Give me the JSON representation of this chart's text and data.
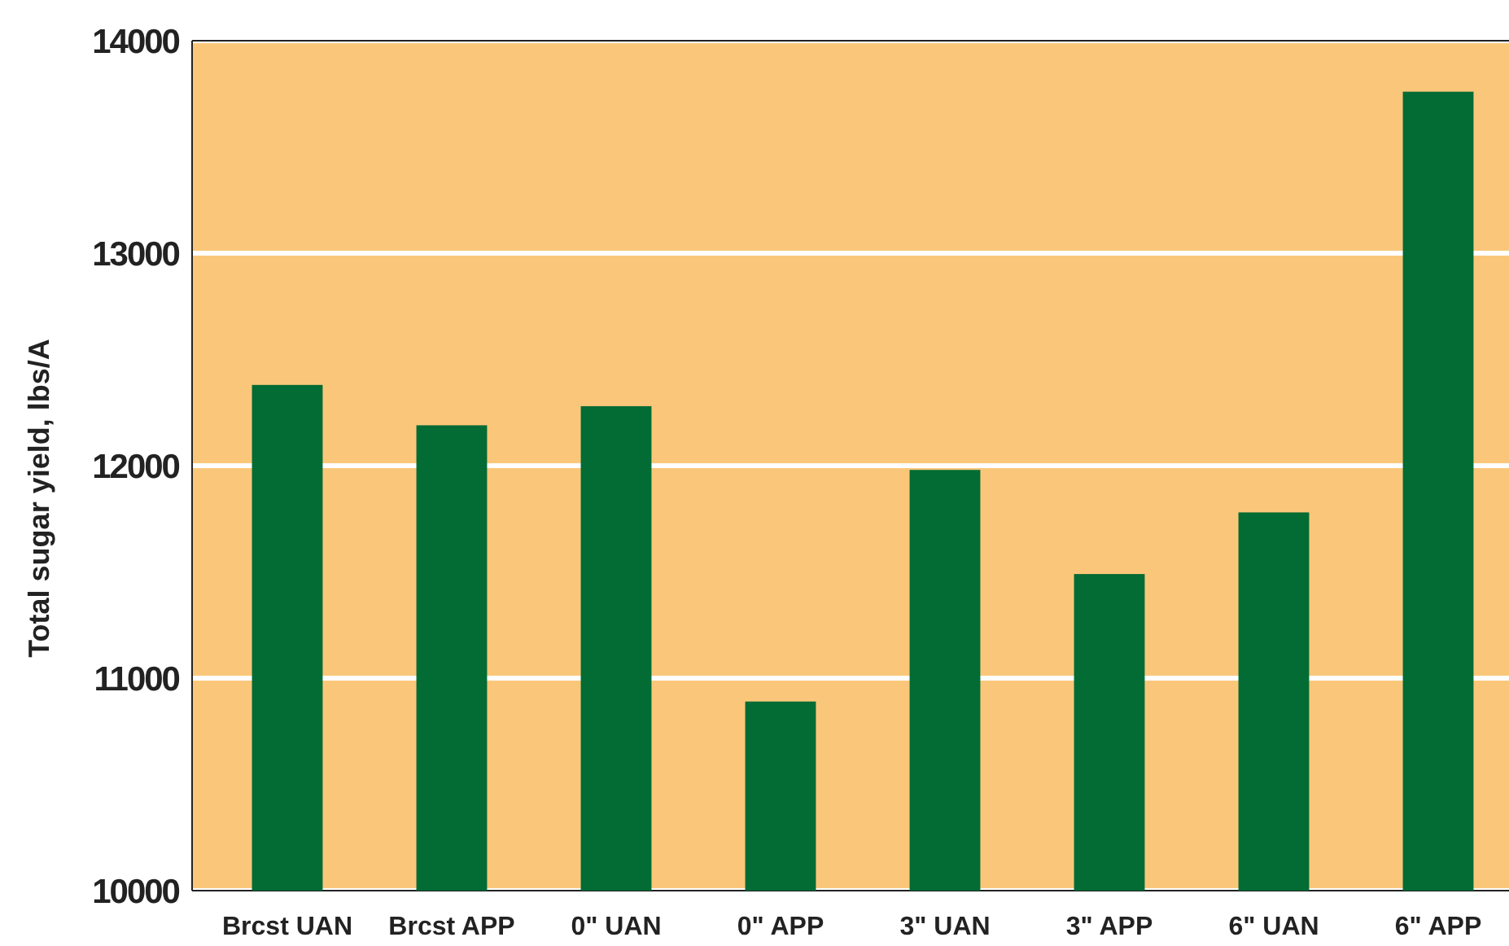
{
  "chart_data": {
    "type": "bar",
    "ylabel": "Total sugar yield, lbs/A",
    "categories": [
      "Brcst UAN",
      "Brcst APP",
      "0\" UAN",
      "0\" APP",
      "3\" UAN",
      "3\" APP",
      "6\" UAN",
      "6\" APP"
    ],
    "values": [
      12380,
      12190,
      12280,
      10890,
      11980,
      11490,
      11780,
      13760
    ],
    "color": "#036b34",
    "ylim": [
      10000,
      14000
    ],
    "yticks": [
      10000,
      11000,
      12000,
      13000,
      14000
    ],
    "grid": "y"
  }
}
